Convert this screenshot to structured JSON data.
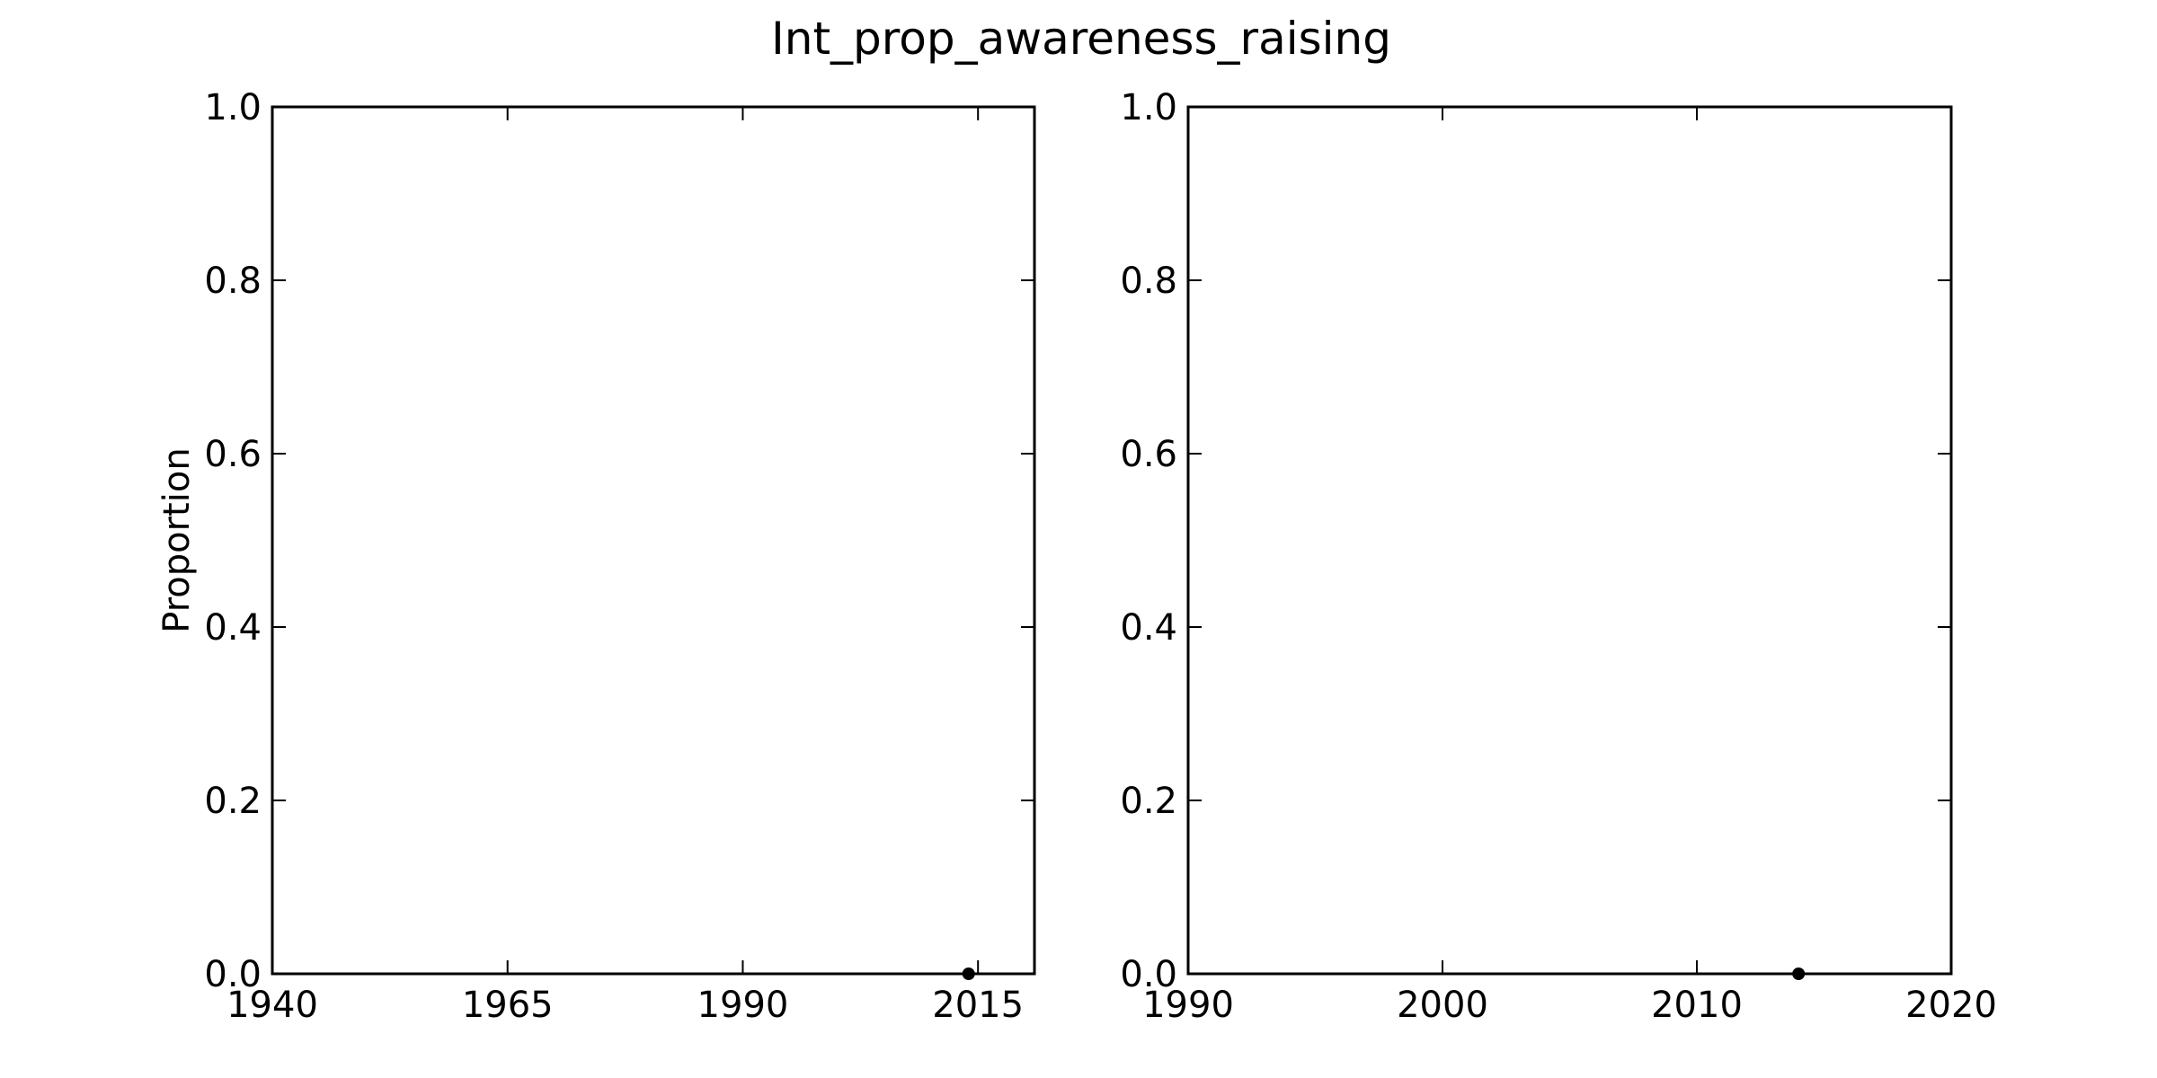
{
  "chart_data": {
    "title": "Int_prop_awareness_raising",
    "charts": [
      {
        "type": "scatter",
        "xlabel": "",
        "ylabel": "Proportion",
        "xlim": [
          1940,
          2021
        ],
        "ylim": [
          0,
          1
        ],
        "xticks": [
          "1940",
          "1965",
          "1990",
          "2015"
        ],
        "yticks": [
          "0.0",
          "0.2",
          "0.4",
          "0.6",
          "0.8",
          "1.0"
        ],
        "grid": false,
        "points": [
          {
            "x": 2014,
            "y": 0.0
          }
        ]
      },
      {
        "type": "scatter",
        "xlabel": "",
        "ylabel": "",
        "xlim": [
          1990,
          2020
        ],
        "ylim": [
          0,
          1
        ],
        "xticks": [
          "1990",
          "2000",
          "2010",
          "2020"
        ],
        "yticks": [
          "0.0",
          "0.2",
          "0.4",
          "0.6",
          "0.8",
          "1.0"
        ],
        "grid": false,
        "points": [
          {
            "x": 2014,
            "y": 0.0
          }
        ]
      }
    ]
  },
  "colors": {
    "marker": "#000000",
    "axis": "#000000",
    "background": "#ffffff"
  }
}
